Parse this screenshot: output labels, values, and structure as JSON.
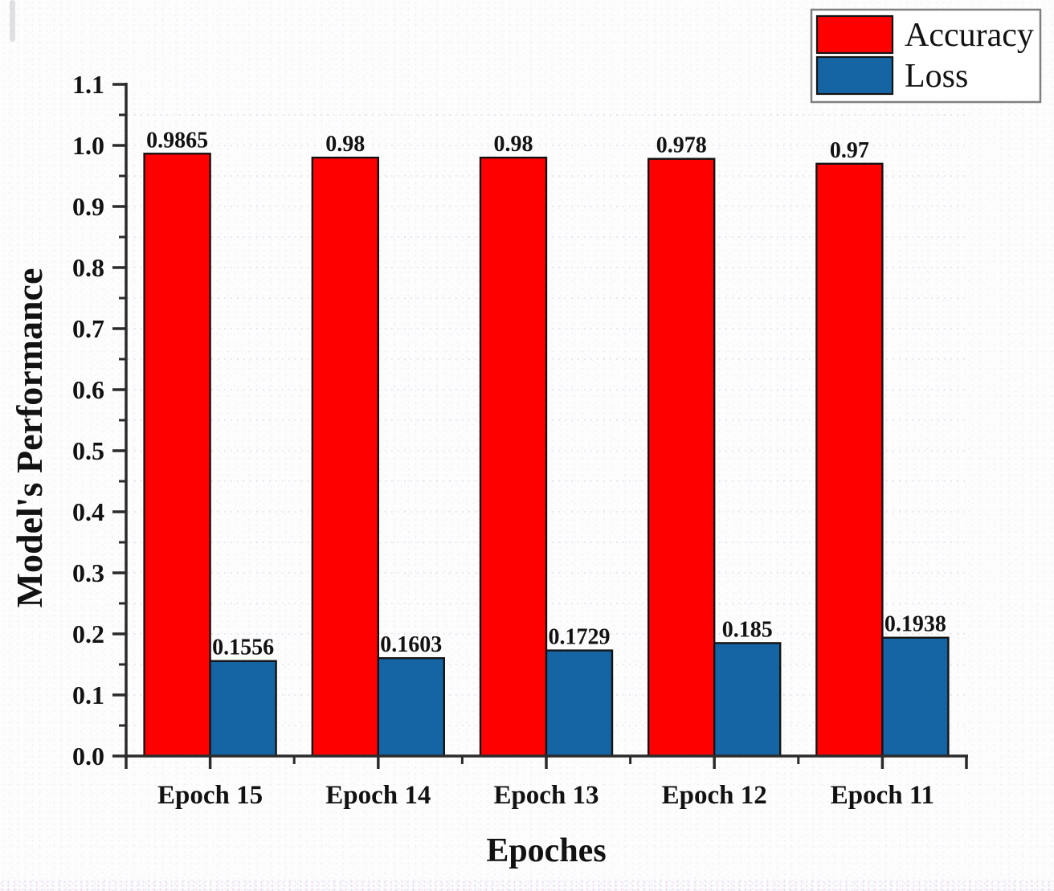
{
  "chart_data": {
    "type": "bar",
    "title": "",
    "xlabel": "Epoches",
    "ylabel": "Model's Performance",
    "categories": [
      "Epoch 15",
      "Epoch 14",
      "Epoch 13",
      "Epoch 12",
      "Epoch 11"
    ],
    "series": [
      {
        "name": "Accuracy",
        "color": "#ff0000",
        "values": [
          0.9865,
          0.98,
          0.98,
          0.978,
          0.97
        ],
        "value_labels": [
          "0.9865",
          "0.98",
          "0.98",
          "0.978",
          "0.97"
        ]
      },
      {
        "name": "Loss",
        "color": "#1565a5",
        "values": [
          0.1556,
          0.1603,
          0.1729,
          0.185,
          0.1938
        ],
        "value_labels": [
          "0.1556",
          "0.1603",
          "0.1729",
          "0.185",
          "0.1938"
        ]
      }
    ],
    "ylim": [
      0.0,
      1.1
    ],
    "y_major_step": 0.1,
    "y_minor_step": 0.05,
    "y_tick_labels": [
      "0.0",
      "0.1",
      "0.2",
      "0.3",
      "0.4",
      "0.5",
      "0.6",
      "0.7",
      "0.8",
      "0.9",
      "1.0",
      "1.1"
    ],
    "grid": "horizontal dotted lines at 0.05 intervals",
    "legend": {
      "position": "top-right",
      "entries": [
        "Accuracy",
        "Loss"
      ]
    },
    "colors": {
      "axis": "#2b2b2b",
      "bar_outline": "#141414",
      "text": "#121212",
      "grid": "#a9bdd2",
      "legend_border": "#7f7f7f",
      "legend_background": "#ffffff"
    }
  }
}
